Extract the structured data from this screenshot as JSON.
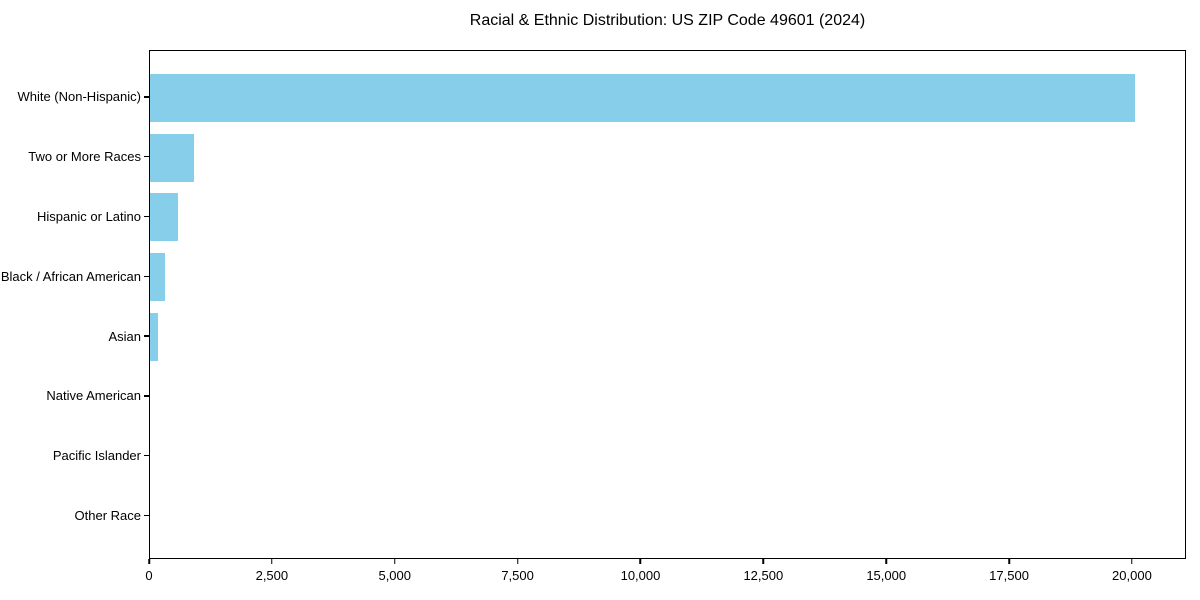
{
  "chart_data": {
    "type": "bar",
    "orientation": "horizontal",
    "title": "Racial & Ethnic Distribution: US ZIP Code 49601 (2024)",
    "categories": [
      "White (Non-Hispanic)",
      "Two or More Races",
      "Hispanic or Latino",
      "Black / African American",
      "Asian",
      "Native American",
      "Pacific Islander",
      "Other Race"
    ],
    "values": [
      20080,
      900,
      570,
      310,
      170,
      0,
      0,
      0
    ],
    "xlabel": "",
    "ylabel": "",
    "xlim": [
      0,
      21100
    ],
    "x_ticks": [
      {
        "value": 0,
        "label": "0"
      },
      {
        "value": 2500,
        "label": "2,500"
      },
      {
        "value": 5000,
        "label": "5,000"
      },
      {
        "value": 7500,
        "label": "7,500"
      },
      {
        "value": 10000,
        "label": "10,000"
      },
      {
        "value": 12500,
        "label": "12,500"
      },
      {
        "value": 15000,
        "label": "15,000"
      },
      {
        "value": 17500,
        "label": "17,500"
      },
      {
        "value": 20000,
        "label": "20,000"
      }
    ],
    "grid": false,
    "legend": "none",
    "bar_color": "#87CEEB",
    "axis_color": "#000000",
    "text_color": "#000000",
    "background_color": "#ffffff"
  }
}
